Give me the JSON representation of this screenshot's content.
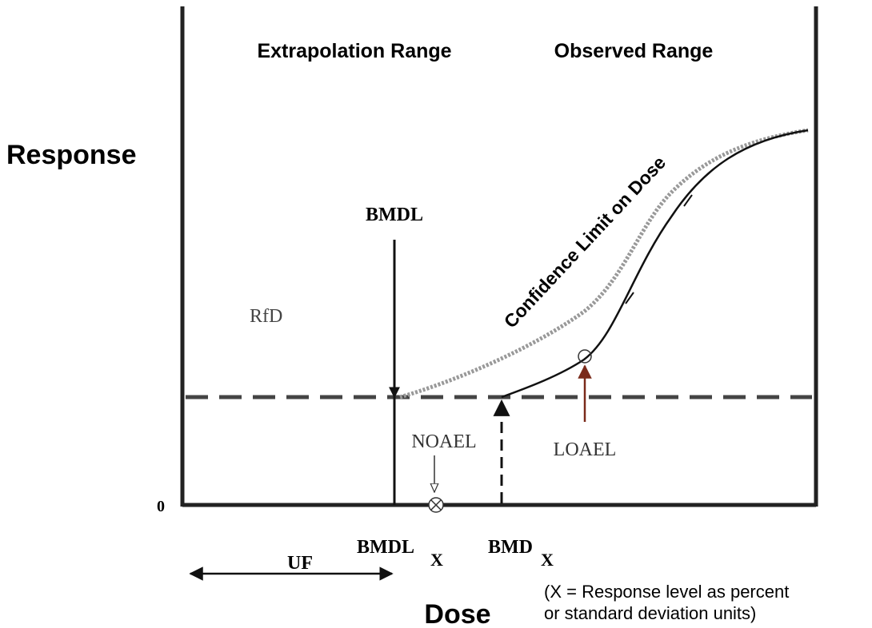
{
  "header": {
    "left_range": "Extrapolation Range",
    "right_range": "Observed Range"
  },
  "axes": {
    "y_label": "Response",
    "x_label": "Dose",
    "origin": "0"
  },
  "labels": {
    "bmdl_top": "BMDL",
    "rfd": "RfD",
    "confidence": "Confidence Limit on Dose",
    "noael": "NOAEL",
    "loael": "LOAEL",
    "bmdl_x": "BMDL",
    "bmdl_x_sub": "X",
    "bmd_x": "BMD",
    "bmd_x_sub": "X",
    "uf": "UF"
  },
  "note": {
    "line1": "(X = Response level as percent",
    "line2": "or standard deviation units)"
  }
}
